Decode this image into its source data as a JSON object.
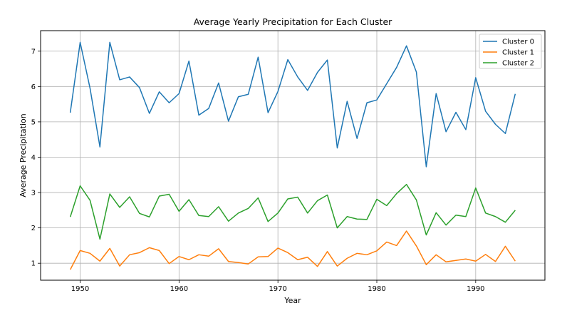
{
  "chart_data": {
    "type": "line",
    "title": "Average Yearly Precipitation for Each Cluster",
    "xlabel": "Year",
    "ylabel": "Average Precipitation",
    "xlim": [
      1946,
      1997
    ],
    "ylim": [
      0.52,
      7.58
    ],
    "xticks": [
      1950,
      1960,
      1970,
      1980,
      1990
    ],
    "yticks": [
      1,
      2,
      3,
      4,
      5,
      6,
      7
    ],
    "grid": true,
    "legend_position": "top-right",
    "x": [
      1949,
      1950,
      1951,
      1952,
      1953,
      1954,
      1955,
      1956,
      1957,
      1958,
      1959,
      1960,
      1961,
      1962,
      1963,
      1964,
      1965,
      1966,
      1967,
      1968,
      1969,
      1970,
      1971,
      1972,
      1973,
      1974,
      1975,
      1976,
      1977,
      1978,
      1979,
      1980,
      1981,
      1982,
      1983,
      1984,
      1985,
      1986,
      1987,
      1988,
      1989,
      1990,
      1991,
      1992,
      1993,
      1994
    ],
    "series": [
      {
        "name": "Cluster 0",
        "color": "#1f77b4",
        "values": [
          5.26,
          7.25,
          5.95,
          4.29,
          7.25,
          6.19,
          6.27,
          5.97,
          5.24,
          5.85,
          5.54,
          5.8,
          6.72,
          5.19,
          5.38,
          6.1,
          5.02,
          5.71,
          5.78,
          6.83,
          5.26,
          5.86,
          6.76,
          6.27,
          5.89,
          6.4,
          6.75,
          4.26,
          5.58,
          4.53,
          5.54,
          5.62,
          6.08,
          6.54,
          7.15,
          6.41,
          3.73,
          5.8,
          4.72,
          5.27,
          4.78,
          6.25,
          5.3,
          4.93,
          4.67,
          5.79
        ]
      },
      {
        "name": "Cluster 1",
        "color": "#ff7f0e",
        "values": [
          0.82,
          1.36,
          1.28,
          1.06,
          1.42,
          0.92,
          1.24,
          1.3,
          1.44,
          1.36,
          0.99,
          1.19,
          1.1,
          1.24,
          1.2,
          1.41,
          1.05,
          1.02,
          0.98,
          1.18,
          1.19,
          1.43,
          1.3,
          1.1,
          1.17,
          0.91,
          1.33,
          0.92,
          1.14,
          1.28,
          1.24,
          1.35,
          1.6,
          1.5,
          1.91,
          1.49,
          0.96,
          1.24,
          1.04,
          1.08,
          1.12,
          1.06,
          1.25,
          1.05,
          1.48,
          1.06
        ]
      },
      {
        "name": "Cluster 2",
        "color": "#2ca02c",
        "values": [
          2.31,
          3.19,
          2.78,
          1.68,
          2.96,
          2.58,
          2.88,
          2.41,
          2.31,
          2.9,
          2.95,
          2.47,
          2.8,
          2.35,
          2.32,
          2.6,
          2.19,
          2.42,
          2.55,
          2.85,
          2.18,
          2.42,
          2.82,
          2.87,
          2.42,
          2.77,
          2.93,
          2.0,
          2.32,
          2.25,
          2.24,
          2.81,
          2.63,
          2.97,
          3.23,
          2.79,
          1.8,
          2.43,
          2.08,
          2.36,
          2.32,
          3.13,
          2.42,
          2.32,
          2.16,
          2.5
        ]
      }
    ]
  }
}
